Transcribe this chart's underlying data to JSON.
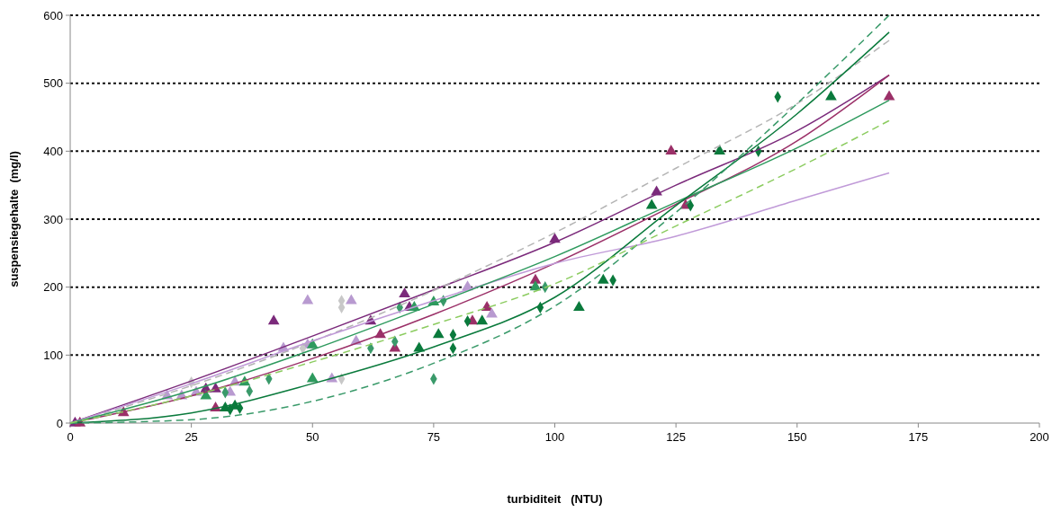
{
  "chart_data": {
    "type": "scatter",
    "xlabel": "turbiditeit   (NTU)",
    "ylabel": "suspensiegehalte  (mg/l)",
    "xlim": [
      0,
      200
    ],
    "xticks": [
      0,
      25,
      50,
      75,
      100,
      125,
      150,
      175,
      200
    ],
    "ylim": [
      0,
      600
    ],
    "yticks": [
      0,
      100,
      200,
      300,
      400,
      500,
      600
    ],
    "grid": "y",
    "series": [
      {
        "marker": "triangle",
        "color": "#7b2a7b",
        "x": [
          1,
          28,
          30,
          42,
          62,
          69,
          70,
          100,
          121
        ],
        "values": [
          0,
          50,
          50,
          150,
          150,
          190,
          170,
          270,
          340
        ]
      },
      {
        "marker": "triangle",
        "color": "#9b3068",
        "x": [
          2,
          11,
          30,
          64,
          67,
          83,
          86,
          96,
          124,
          127,
          169
        ],
        "values": [
          0,
          15,
          22,
          130,
          110,
          150,
          170,
          210,
          400,
          320,
          480
        ]
      },
      {
        "marker": "triangle",
        "color": "#b89ad0",
        "x": [
          20,
          23,
          26,
          33,
          34,
          44,
          49,
          49,
          54,
          58,
          59,
          82,
          87
        ],
        "values": [
          40,
          40,
          45,
          45,
          60,
          110,
          180,
          115,
          65,
          180,
          120,
          200,
          160
        ]
      },
      {
        "marker": "diamond",
        "color": "#c8c8c8",
        "x": [
          25,
          48,
          56,
          56,
          56
        ],
        "values": [
          60,
          110,
          180,
          170,
          65
        ]
      },
      {
        "marker": "triangle",
        "color": "#0a7a3c",
        "x": [
          32,
          34,
          72,
          76,
          85,
          105,
          110,
          120,
          134,
          157
        ],
        "values": [
          22,
          25,
          110,
          130,
          150,
          170,
          210,
          320,
          400,
          480
        ]
      },
      {
        "marker": "diamond",
        "color": "#0a7a3c",
        "x": [
          33,
          35,
          79,
          79,
          82,
          97,
          112,
          128,
          142,
          146
        ],
        "values": [
          20,
          22,
          130,
          110,
          150,
          170,
          210,
          320,
          400,
          480
        ]
      },
      {
        "marker": "triangle",
        "color": "#2e9a5e",
        "x": [
          28,
          36,
          50,
          50,
          71,
          75,
          96
        ],
        "values": [
          40,
          60,
          65,
          115,
          170,
          178,
          200
        ]
      },
      {
        "marker": "diamond",
        "color": "#3a9a6a",
        "x": [
          32,
          37,
          41,
          62,
          67,
          68,
          75,
          77,
          98
        ],
        "values": [
          45,
          47,
          65,
          110,
          120,
          170,
          65,
          180,
          200
        ]
      },
      {
        "type": "line",
        "line_style": "solid",
        "color": "#7b2a7b",
        "x": [
          0,
          25,
          50,
          75,
          100,
          125,
          150,
          169
        ],
        "values": [
          0,
          62,
          128,
          196,
          266,
          350,
          430,
          512
        ]
      },
      {
        "type": "line",
        "line_style": "dashed",
        "color": "#b4b4b4",
        "x": [
          0,
          25,
          50,
          75,
          100,
          125,
          150,
          169
        ],
        "values": [
          0,
          55,
          120,
          195,
          280,
          375,
          470,
          563
        ]
      },
      {
        "type": "line",
        "line_style": "solid",
        "color": "#9b3068",
        "x": [
          0,
          25,
          50,
          75,
          100,
          125,
          150,
          169
        ],
        "values": [
          0,
          40,
          95,
          160,
          235,
          322,
          415,
          512
        ]
      },
      {
        "type": "line",
        "line_style": "solid",
        "color": "#c09ad8",
        "x": [
          0,
          25,
          50,
          75,
          100,
          125,
          150,
          169
        ],
        "values": [
          0,
          58,
          121,
          180,
          235,
          275,
          328,
          368
        ]
      },
      {
        "type": "line",
        "line_style": "solid",
        "color": "#2e9a5e",
        "x": [
          0,
          25,
          50,
          75,
          100,
          125,
          150,
          169
        ],
        "values": [
          0,
          48,
          108,
          175,
          245,
          325,
          405,
          475
        ]
      },
      {
        "type": "line",
        "line_style": "solid",
        "color": "#0a7a3c",
        "x": [
          0,
          25,
          50,
          75,
          100,
          125,
          150,
          169
        ],
        "values": [
          0,
          15,
          58,
          112,
          185,
          320,
          455,
          575
        ]
      },
      {
        "type": "line",
        "line_style": "dashed",
        "color": "#3a9a6a",
        "x": [
          0,
          25,
          50,
          75,
          100,
          125,
          150,
          169
        ],
        "values": [
          0,
          5,
          32,
          88,
          172,
          310,
          470,
          600
        ]
      },
      {
        "type": "line",
        "line_style": "dashed",
        "color": "#8ccc60",
        "x": [
          0,
          25,
          50,
          75,
          100,
          125,
          150,
          169
        ],
        "values": [
          0,
          40,
          90,
          145,
          205,
          290,
          375,
          445
        ]
      }
    ]
  }
}
